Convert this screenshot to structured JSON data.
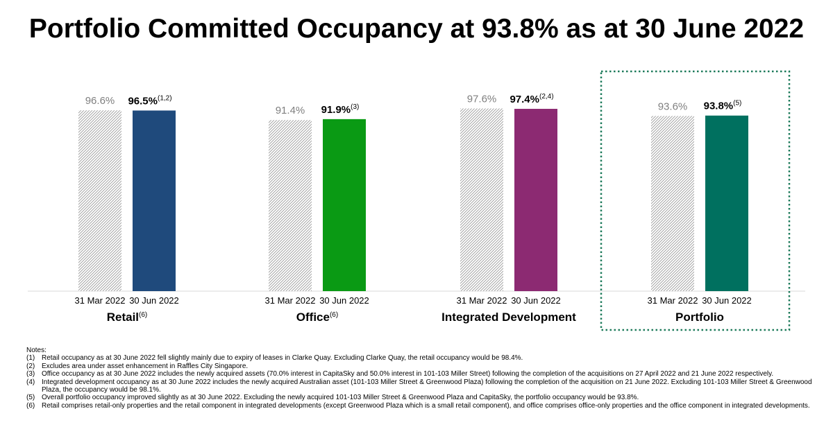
{
  "title": "Portfolio Committed Occupancy at 93.8% as at 30 June 2022",
  "chart_data": {
    "type": "bar",
    "series_names": [
      "31 Mar 2022",
      "30 Jun 2022"
    ],
    "groups": [
      {
        "label": "Retail",
        "label_sup": "(6)",
        "values": [
          96.6,
          96.5
        ],
        "value_labels": [
          "96.6%",
          "96.5%"
        ],
        "value_sup": "(1,2)",
        "color": "#1F4A7C"
      },
      {
        "label": "Office",
        "label_sup": "(6)",
        "values": [
          91.4,
          91.9
        ],
        "value_labels": [
          "91.4%",
          "91.9%"
        ],
        "value_sup": "(3)",
        "color": "#0A9A14"
      },
      {
        "label": "Integrated Development",
        "label_sup": "",
        "values": [
          97.6,
          97.4
        ],
        "value_labels": [
          "97.6%",
          "97.4%"
        ],
        "value_sup": "(2,4)",
        "color": "#8C2A72"
      },
      {
        "label": "Portfolio",
        "label_sup": "",
        "values": [
          93.6,
          93.8
        ],
        "value_labels": [
          "93.6%",
          "93.8%"
        ],
        "value_sup": "(5)",
        "color": "#00705F"
      }
    ],
    "ylim": [
      0,
      100
    ],
    "highlight_group": "Portfolio",
    "highlight_color": "#1C7A5A",
    "hatch_color": "#9A9A9A",
    "axis_color": "#D9D9D9"
  },
  "notes": {
    "heading": "Notes:",
    "items": [
      {
        "num": "(1)",
        "text": "Retail occupancy as at 30 June 2022 fell slightly mainly due to expiry of leases in Clarke Quay. Excluding Clarke Quay, the retail occupancy would be 98.4%."
      },
      {
        "num": "(2)",
        "text": "Excludes area under asset enhancement in Raffles City Singapore."
      },
      {
        "num": "(3)",
        "text": "Office occupancy as at 30 June 2022 includes the newly acquired assets (70.0% interest in CapitaSky and 50.0% interest in 101-103 Miller Street) following the completion of the acquisitions on 27 April 2022 and 21 June 2022 respectively."
      },
      {
        "num": "(4)",
        "text": "Integrated development occupancy as at 30 June 2022 includes the newly acquired Australian asset (101-103 Miller Street & Greenwood Plaza) following the completion of the acquisition on 21 June 2022. Excluding 101-103 Miller Street & Greenwood Plaza, the occupancy would be 98.1%."
      },
      {
        "num": "(5)",
        "text": "Overall portfolio occupancy improved slightly as at 30 June 2022. Excluding the newly acquired 101-103 Miller Street & Greenwood Plaza and CapitaSky, the portfolio occupancy would be 93.8%."
      },
      {
        "num": "(6)",
        "text": "Retail comprises retail-only properties and the retail component in integrated developments (except Greenwood Plaza which is a small retail component), and office comprises office-only properties and the office component in integrated developments."
      }
    ]
  }
}
